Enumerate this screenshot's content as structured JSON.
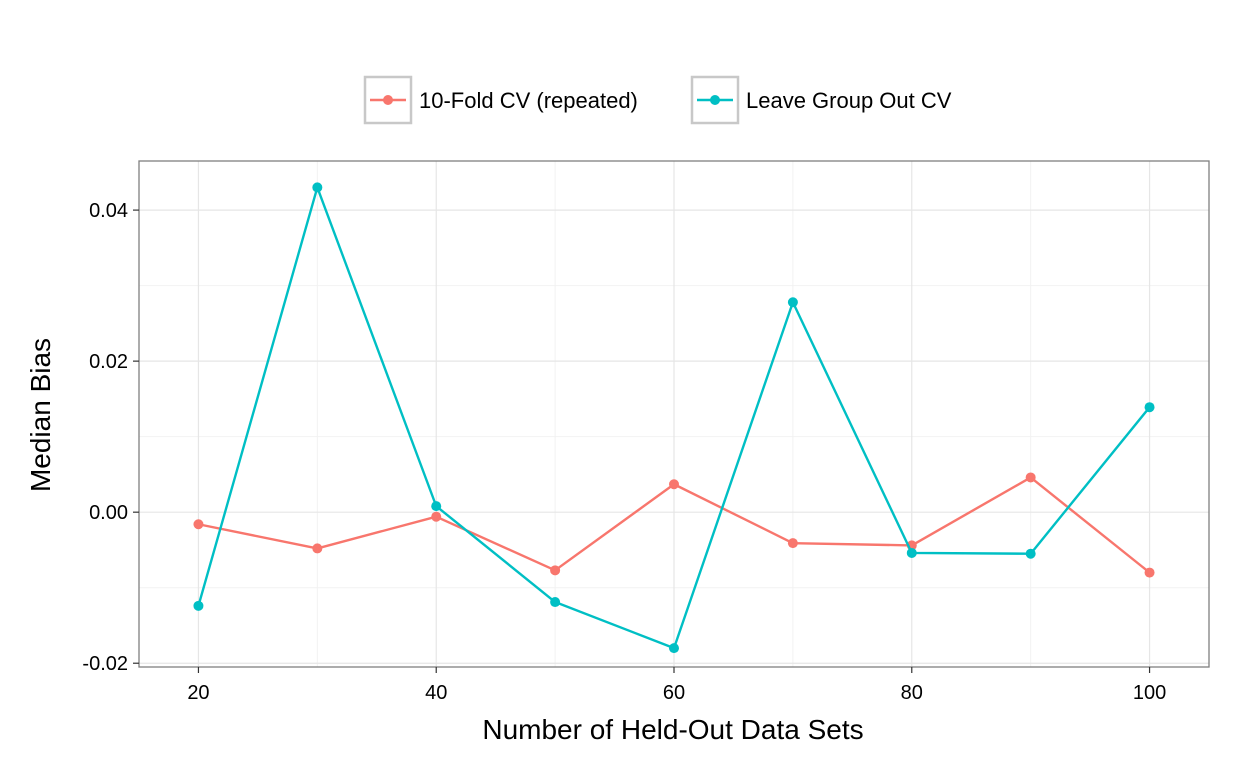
{
  "chart_data": {
    "type": "line",
    "xlabel": "Number of Held-Out Data Sets",
    "ylabel": "Median Bias",
    "x": [
      20,
      30,
      40,
      50,
      60,
      70,
      80,
      90,
      100
    ],
    "xlim": [
      15,
      105
    ],
    "ylim": [
      -0.0205,
      0.0465
    ],
    "x_ticks": [
      20,
      40,
      60,
      80,
      100
    ],
    "x_tick_labels": [
      "20",
      "40",
      "60",
      "80",
      "100"
    ],
    "y_ticks": [
      -0.02,
      0.0,
      0.02,
      0.04
    ],
    "y_tick_labels": [
      "-0.02",
      "0.00",
      "0.02",
      "0.04"
    ],
    "grid": true,
    "legend_position": "top",
    "series": [
      {
        "name": "10-Fold CV (repeated)",
        "color": "#F8766D",
        "values": [
          -0.0016,
          -0.0048,
          -0.0006,
          -0.0077,
          0.0037,
          -0.0041,
          -0.0044,
          0.0046,
          -0.008
        ]
      },
      {
        "name": "Leave Group Out CV",
        "color": "#00BFC4",
        "values": [
          -0.0124,
          0.043,
          0.0008,
          -0.0119,
          -0.018,
          0.0278,
          -0.0054,
          -0.0055,
          0.0139
        ]
      }
    ]
  }
}
